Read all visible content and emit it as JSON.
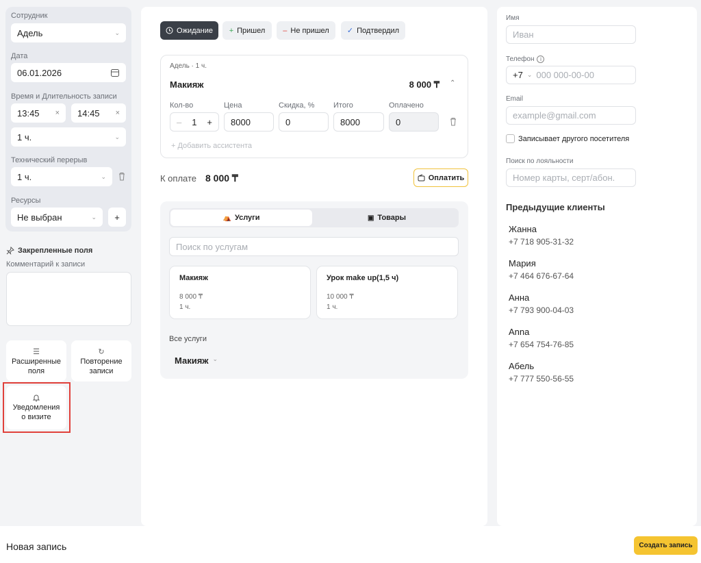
{
  "left": {
    "employee": {
      "label": "Сотрудник",
      "value": "Адель"
    },
    "date": {
      "label": "Дата",
      "value": "06.01.2026"
    },
    "time": {
      "label": "Время и Длительность записи",
      "start": "13:45",
      "end": "14:45",
      "duration": "1 ч."
    },
    "break": {
      "label": "Технический перерыв",
      "value": "1 ч."
    },
    "resources": {
      "label": "Ресурсы",
      "value": "Не выбран"
    },
    "pinned": "Закрепленные поля",
    "comment_label": "Комментарий к записи",
    "buttons": [
      [
        "Расширенные",
        "поля"
      ],
      [
        "Повторение",
        "записи"
      ],
      [
        "Уведомления",
        "о визите"
      ]
    ]
  },
  "middle": {
    "statuses": [
      "Ожидание",
      "Пришел",
      "Не пришел",
      "Подтвердил"
    ],
    "card": {
      "meta": "Адель · 1 ч.",
      "name": "Макияж",
      "total": "8 000 ₸",
      "columns": [
        "Кол-во",
        "Цена",
        "Скидка, %",
        "Итого",
        "Оплачено"
      ],
      "qty": "1",
      "price": "8000",
      "discount": "0",
      "sum": "8000",
      "paid": "0",
      "add_assistant": "+ Добавить ассистента"
    },
    "to_pay_label": "К оплате",
    "to_pay": "8 000 ₸",
    "pay_button": "Оплатить",
    "tabs": [
      "Услуги",
      "Товары"
    ],
    "search_placeholder": "Поиск по услугам",
    "services": [
      {
        "name": "Макияж",
        "price": "8 000 ₸",
        "duration": "1 ч."
      },
      {
        "name": "Урок make up(1,5 ч)",
        "price": "10 000 ₸",
        "duration": "1 ч."
      }
    ],
    "all_services": "Все услуги",
    "category": "Макияж"
  },
  "right": {
    "name_label": "Имя",
    "name_placeholder": "Иван",
    "phone_label": "Телефон",
    "phone_code": "+7",
    "phone_placeholder": "000 000-00-00",
    "email_label": "Email",
    "email_placeholder": "example@gmail.com",
    "other_visitor": "Записывает другого посетителя",
    "loyalty_label": "Поиск по лояльности",
    "loyalty_placeholder": "Номер карты, серт/абон.",
    "previous_title": "Предыдущие клиенты",
    "clients": [
      {
        "name": "Жанна",
        "phone": "+7 718 905-31-32"
      },
      {
        "name": "Мария",
        "phone": "+7 464 676-67-64"
      },
      {
        "name": "Анна",
        "phone": "+7 793 900-04-03"
      },
      {
        "name": "Anna",
        "phone": "+7 654 754-76-85"
      },
      {
        "name": "Абель",
        "phone": "+7 777 550-56-55"
      }
    ]
  },
  "footer": {
    "title": "Новая запись",
    "create_button": "Создать запись"
  }
}
